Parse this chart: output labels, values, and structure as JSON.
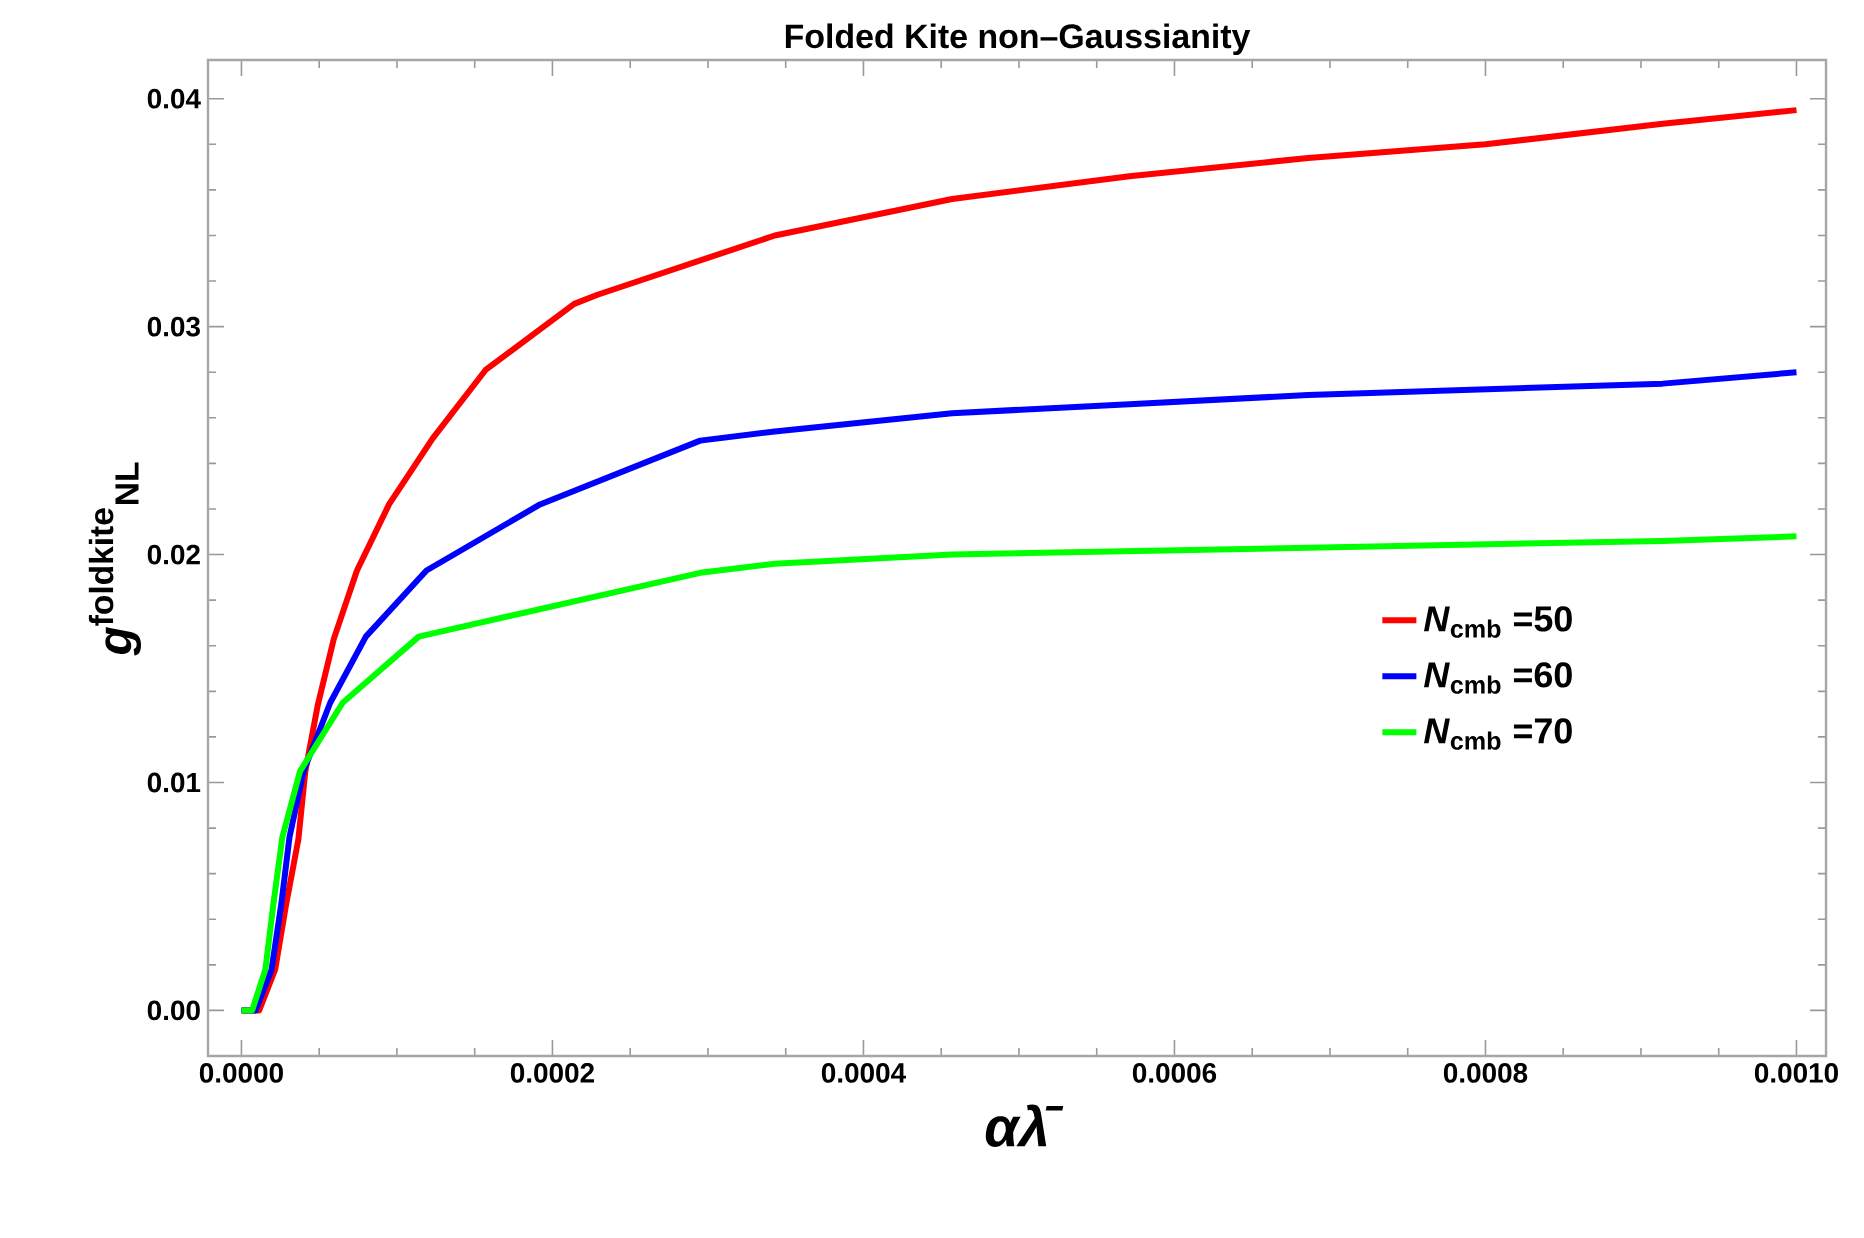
{
  "chart_data": {
    "type": "line",
    "title": "Folded Kite non–Gaussianity",
    "xlabel": "αλ̄",
    "ylabel": "*g*$^{foldkite}$$_{NL}$",
    "xlim": [
      -2.15e-05,
      0.001019
    ],
    "ylim": [
      -0.002,
      0.0417
    ],
    "xticks": [
      {
        "value": 0,
        "label": "0.0000"
      },
      {
        "value": 0.0002,
        "label": "0.0002"
      },
      {
        "value": 0.0004,
        "label": "0.0004"
      },
      {
        "value": 0.0006,
        "label": "0.0006"
      },
      {
        "value": 0.0008,
        "label": "0.0008"
      },
      {
        "value": 0.001,
        "label": "0.0010"
      }
    ],
    "yticks": [
      {
        "value": 0,
        "label": "0.00"
      },
      {
        "value": 0.01,
        "label": "0.01"
      },
      {
        "value": 0.02,
        "label": "0.02"
      },
      {
        "value": 0.03,
        "label": "0.03"
      },
      {
        "value": 0.04,
        "label": "0.04"
      }
    ],
    "grid": false,
    "legend": "right",
    "series": [
      {
        "name": "*N*$_{cmb}$ =50",
        "color": "#ff0000",
        "x": [
          0,
          1.14e-05,
          2.17e-05,
          2.86e-05,
          3.66e-05,
          4.11e-05,
          4.91e-05,
          5.94e-05,
          7.43e-05,
          9.49e-05,
          0.000123,
          0.000157,
          0.000214,
          0.000229,
          0.000343,
          0.000457,
          0.000571,
          0.000686,
          0.0008,
          0.000914,
          0.001
        ],
        "values": [
          0,
          0,
          0.0018,
          0.0046,
          0.0075,
          0.0105,
          0.0134,
          0.0163,
          0.0193,
          0.0222,
          0.0251,
          0.0281,
          0.031,
          0.0314,
          0.034,
          0.0356,
          0.0366,
          0.0374,
          0.038,
          0.0389,
          0.0395
        ]
      },
      {
        "name": "*N*$_{cmb}$ =60",
        "color": "#0000ff",
        "x": [
          0,
          9.1e-06,
          1.94e-05,
          2.57e-05,
          3.09e-05,
          4e-05,
          5.71e-05,
          8e-05,
          0.000119,
          0.000192,
          0.000295,
          0.000343,
          0.000457,
          0.000571,
          0.000686,
          0.000914,
          0.001
        ],
        "values": [
          0,
          0,
          0.0018,
          0.0047,
          0.0076,
          0.0105,
          0.0135,
          0.0164,
          0.0193,
          0.0222,
          0.025,
          0.0254,
          0.0262,
          0.0266,
          0.027,
          0.0275,
          0.028
        ]
      },
      {
        "name": "*N*$_{cmb}$ =70",
        "color": "#00ff00",
        "x": [
          0,
          6.9e-06,
          1.54e-05,
          2.06e-05,
          2.63e-05,
          3.77e-05,
          6.51e-05,
          0.000114,
          0.000295,
          0.000343,
          0.000457,
          0.000686,
          0.000914,
          0.001
        ],
        "values": [
          0,
          0,
          0.0018,
          0.0047,
          0.0076,
          0.0105,
          0.0135,
          0.0164,
          0.0192,
          0.0196,
          0.02,
          0.0203,
          0.0206,
          0.0208
        ]
      }
    ]
  }
}
